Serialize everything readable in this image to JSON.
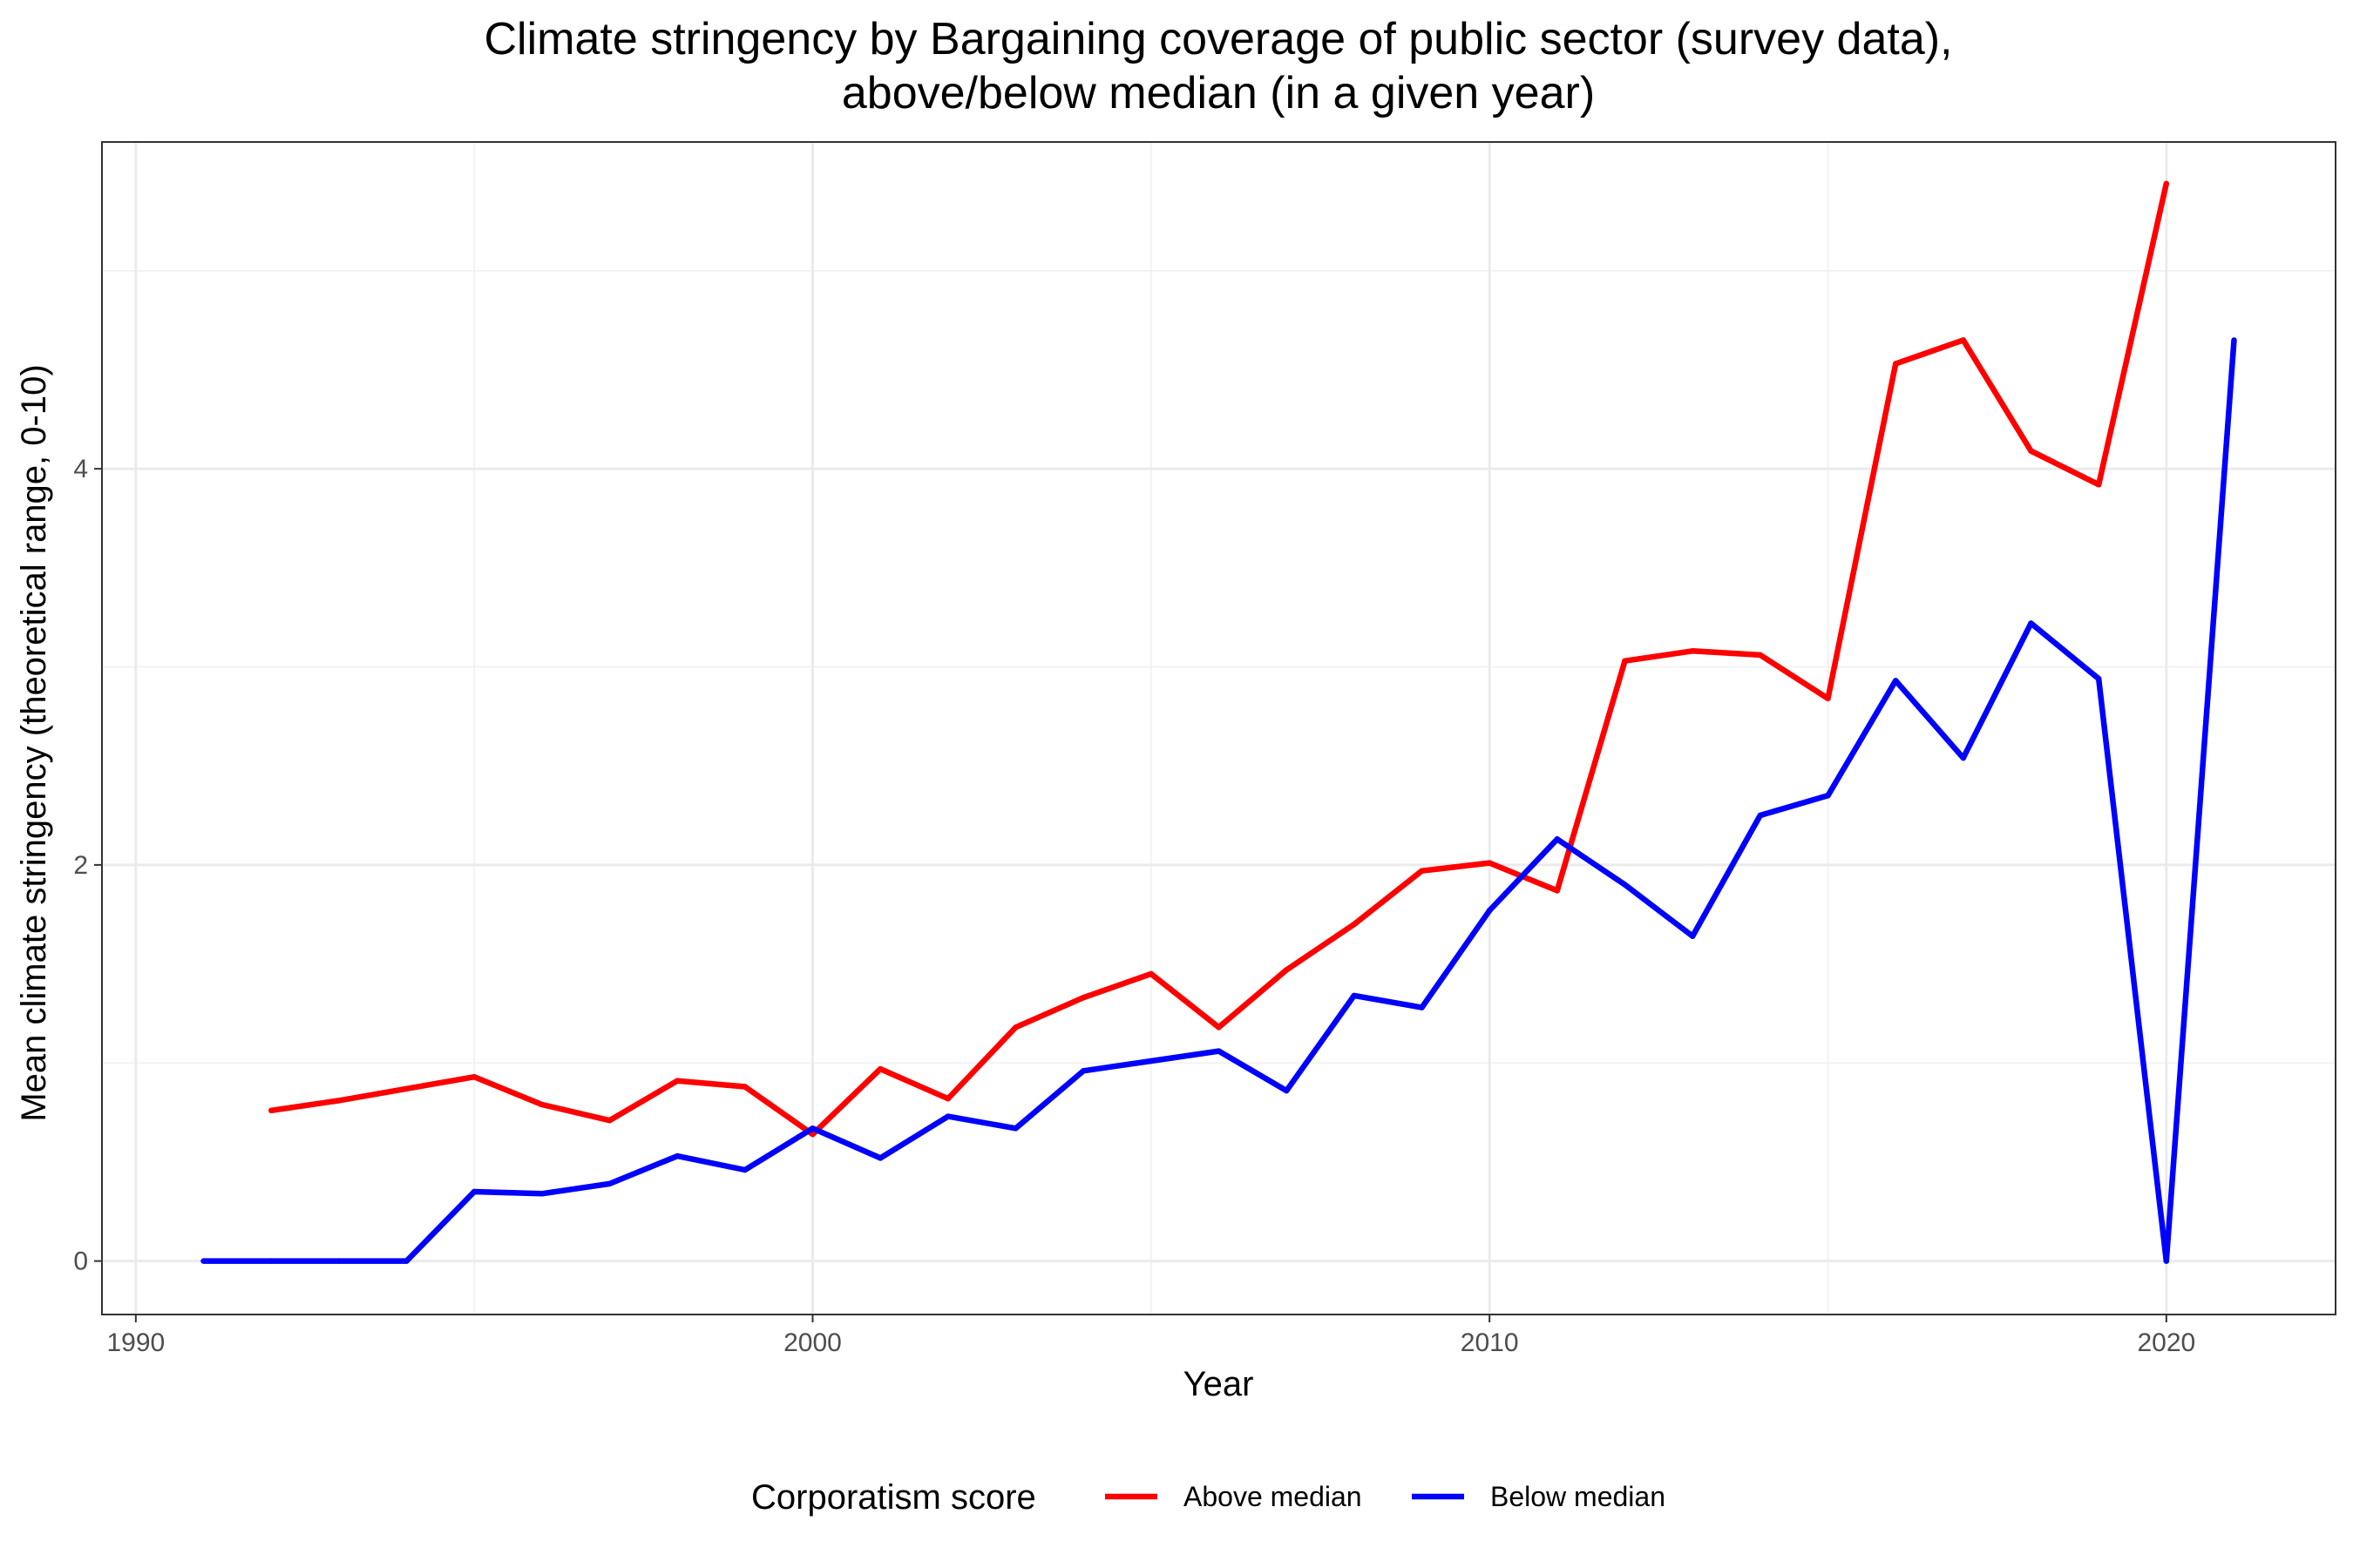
{
  "chart_data": {
    "type": "line",
    "title": "Climate stringency by Bargaining coverage of public sector (survey data),",
    "subtitle": "above/below median (in a given year)",
    "xlabel": "Year",
    "ylabel": "Mean climate stringency (theoretical range, 0-10)",
    "xlim": [
      1989.5,
      2022.5
    ],
    "ylim": [
      -0.27,
      5.65
    ],
    "x_ticks": [
      1990,
      2000,
      2010,
      2020
    ],
    "x_tick_labels": [
      "1990",
      "2000",
      "2010",
      "2020"
    ],
    "y_ticks": [
      0,
      2,
      4
    ],
    "y_tick_labels": [
      "0",
      "2",
      "4"
    ],
    "x_minor": [
      1995,
      2005,
      2015
    ],
    "y_minor": [
      1,
      3,
      5
    ],
    "grid": true,
    "legend_placement": "bottom",
    "legend_title": "Corporatism score",
    "series": [
      {
        "name": "Above median",
        "color": "#ff0000",
        "x": [
          1992,
          1993,
          1994,
          1995,
          1996,
          1997,
          1998,
          1999,
          2000,
          2001,
          2002,
          2003,
          2004,
          2005,
          2006,
          2007,
          2008,
          2009,
          2010,
          2011,
          2012,
          2013,
          2014,
          2015,
          2016,
          2017,
          2018,
          2019,
          2020
        ],
        "values": [
          0.76,
          0.81,
          0.87,
          0.93,
          0.79,
          0.71,
          0.91,
          0.88,
          0.64,
          0.97,
          0.82,
          1.18,
          1.33,
          1.45,
          1.18,
          1.47,
          1.7,
          1.97,
          2.01,
          1.87,
          3.03,
          3.08,
          3.06,
          2.84,
          4.53,
          4.65,
          4.09,
          3.92,
          5.44
        ]
      },
      {
        "name": "Below median",
        "color": "#0000ff",
        "x": [
          1991,
          1992,
          1993,
          1994,
          1995,
          1996,
          1997,
          1998,
          1999,
          2000,
          2001,
          2002,
          2003,
          2004,
          2005,
          2006,
          2007,
          2008,
          2009,
          2010,
          2011,
          2012,
          2013,
          2014,
          2015,
          2016,
          2017,
          2018,
          2019,
          2020,
          2021
        ],
        "values": [
          0,
          0,
          0,
          0,
          0.35,
          0.34,
          0.39,
          0.53,
          0.46,
          0.67,
          0.52,
          0.73,
          0.67,
          0.96,
          1.01,
          1.06,
          0.86,
          1.34,
          1.28,
          1.77,
          2.13,
          1.9,
          1.64,
          2.25,
          2.35,
          2.93,
          2.54,
          3.22,
          2.94,
          0,
          4.65
        ]
      }
    ]
  }
}
